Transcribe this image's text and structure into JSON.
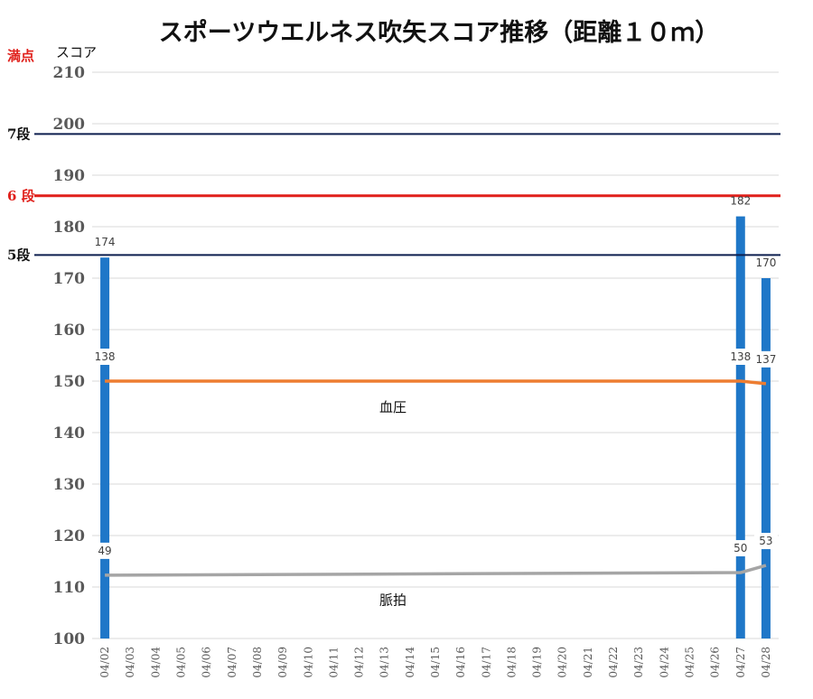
{
  "chart_data": {
    "type": "bar",
    "title": "スポーツウエルネス吹矢スコア推移（距離１０ｍ）",
    "ylabel": "スコア",
    "ylim": [
      100,
      210
    ],
    "yticks": [
      100,
      110,
      120,
      130,
      140,
      150,
      160,
      170,
      180,
      190,
      200,
      210
    ],
    "grid": true,
    "categories": [
      "04/02",
      "04/03",
      "04/04",
      "04/05",
      "04/06",
      "04/07",
      "04/08",
      "04/09",
      "04/10",
      "04/11",
      "04/12",
      "04/13",
      "04/14",
      "04/15",
      "04/16",
      "04/17",
      "04/18",
      "04/19",
      "04/20",
      "04/21",
      "04/22",
      "04/23",
      "04/24",
      "04/25",
      "04/26",
      "04/27",
      "04/28"
    ],
    "series": [
      {
        "name": "",
        "kind": "bar",
        "color": "#1f77c8",
        "values": [
          174,
          null,
          null,
          null,
          null,
          null,
          null,
          null,
          null,
          null,
          null,
          null,
          null,
          null,
          null,
          null,
          null,
          null,
          null,
          null,
          null,
          null,
          null,
          null,
          null,
          182,
          170
        ]
      },
      {
        "name": "血圧",
        "kind": "line",
        "color": "#ed7d31",
        "values": [
          138,
          null,
          null,
          null,
          null,
          null,
          null,
          null,
          null,
          null,
          null,
          null,
          null,
          null,
          null,
          null,
          null,
          null,
          null,
          null,
          null,
          null,
          null,
          null,
          null,
          138,
          137
        ],
        "plot_at": [
          150,
          null,
          null,
          null,
          null,
          null,
          null,
          null,
          null,
          null,
          null,
          null,
          null,
          null,
          null,
          null,
          null,
          null,
          null,
          null,
          null,
          null,
          null,
          null,
          null,
          150,
          149.5
        ]
      },
      {
        "name": "脈拍",
        "kind": "line",
        "color": "#a5a5a5",
        "values": [
          49,
          null,
          null,
          null,
          null,
          null,
          null,
          null,
          null,
          null,
          null,
          null,
          null,
          null,
          null,
          null,
          null,
          null,
          null,
          null,
          null,
          null,
          null,
          null,
          null,
          50,
          53
        ],
        "plot_at": [
          112.3,
          null,
          null,
          null,
          null,
          null,
          null,
          null,
          null,
          null,
          null,
          null,
          null,
          null,
          null,
          null,
          null,
          null,
          null,
          null,
          null,
          null,
          null,
          null,
          null,
          112.8,
          114.2
        ]
      }
    ],
    "reference_lines": [
      {
        "label": "満点",
        "value": 210,
        "label_color": "#e0201b",
        "line_color": "",
        "show_line": false
      },
      {
        "label": "7段",
        "value": 198,
        "label_color": "#111111",
        "line_color": "#0d1f4f",
        "show_line": true
      },
      {
        "label": "6 段",
        "value": 186,
        "label_color": "#e0201b",
        "line_color": "#e0201b",
        "show_line": true
      },
      {
        "label": "5段",
        "value": 174.5,
        "label_color": "#111111",
        "line_color": "#0d1f4f",
        "show_line": true
      }
    ]
  }
}
